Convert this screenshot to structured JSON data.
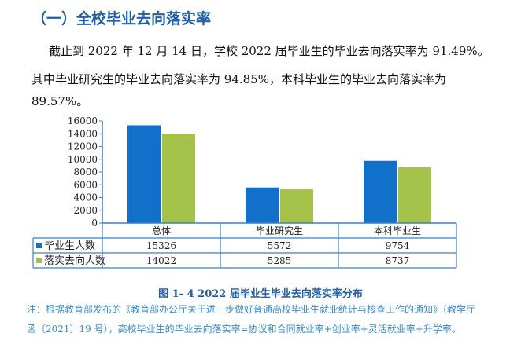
{
  "heading": "（一）全校毕业去向落实率",
  "paragraph": {
    "line1": "截止到 2022 年 12 月 14 日，学校 2022 届毕业生的毕业去向落实率为 91.49%。",
    "line2": "其中毕业研究生的毕业去向落实率为 94.85%，本科毕业生的毕业去向落实率为",
    "line3": "89.57%。"
  },
  "chart_data": {
    "type": "bar",
    "categories": [
      "总体",
      "毕业研究生",
      "本科毕业生"
    ],
    "series": [
      {
        "name": "毕业生人数",
        "values": [
          15326,
          5572,
          9754
        ],
        "color": "#1170c9"
      },
      {
        "name": "落实去向人数",
        "values": [
          14022,
          5285,
          8737
        ],
        "color": "#a5c34a"
      }
    ],
    "ylim": [
      0,
      16000
    ],
    "yticks": [
      "0",
      "2000",
      "4000",
      "6000",
      "8000",
      "10000",
      "12000",
      "14000",
      "16000"
    ],
    "legend": "data-table",
    "grid": false
  },
  "caption": "图 1- 4   2022 届毕业生毕业去向落实率分布",
  "note": {
    "line1": "注：根据教育部发布的《教育部办公厅关于进一步做好普通高校毕业生就业统计与核查工作的通知》（教学厅",
    "line2": "函〔2021〕19 号），高校毕业生的毕业去向落实率=协议和合同就业率+创业率+灵活就业率+升学率。"
  }
}
